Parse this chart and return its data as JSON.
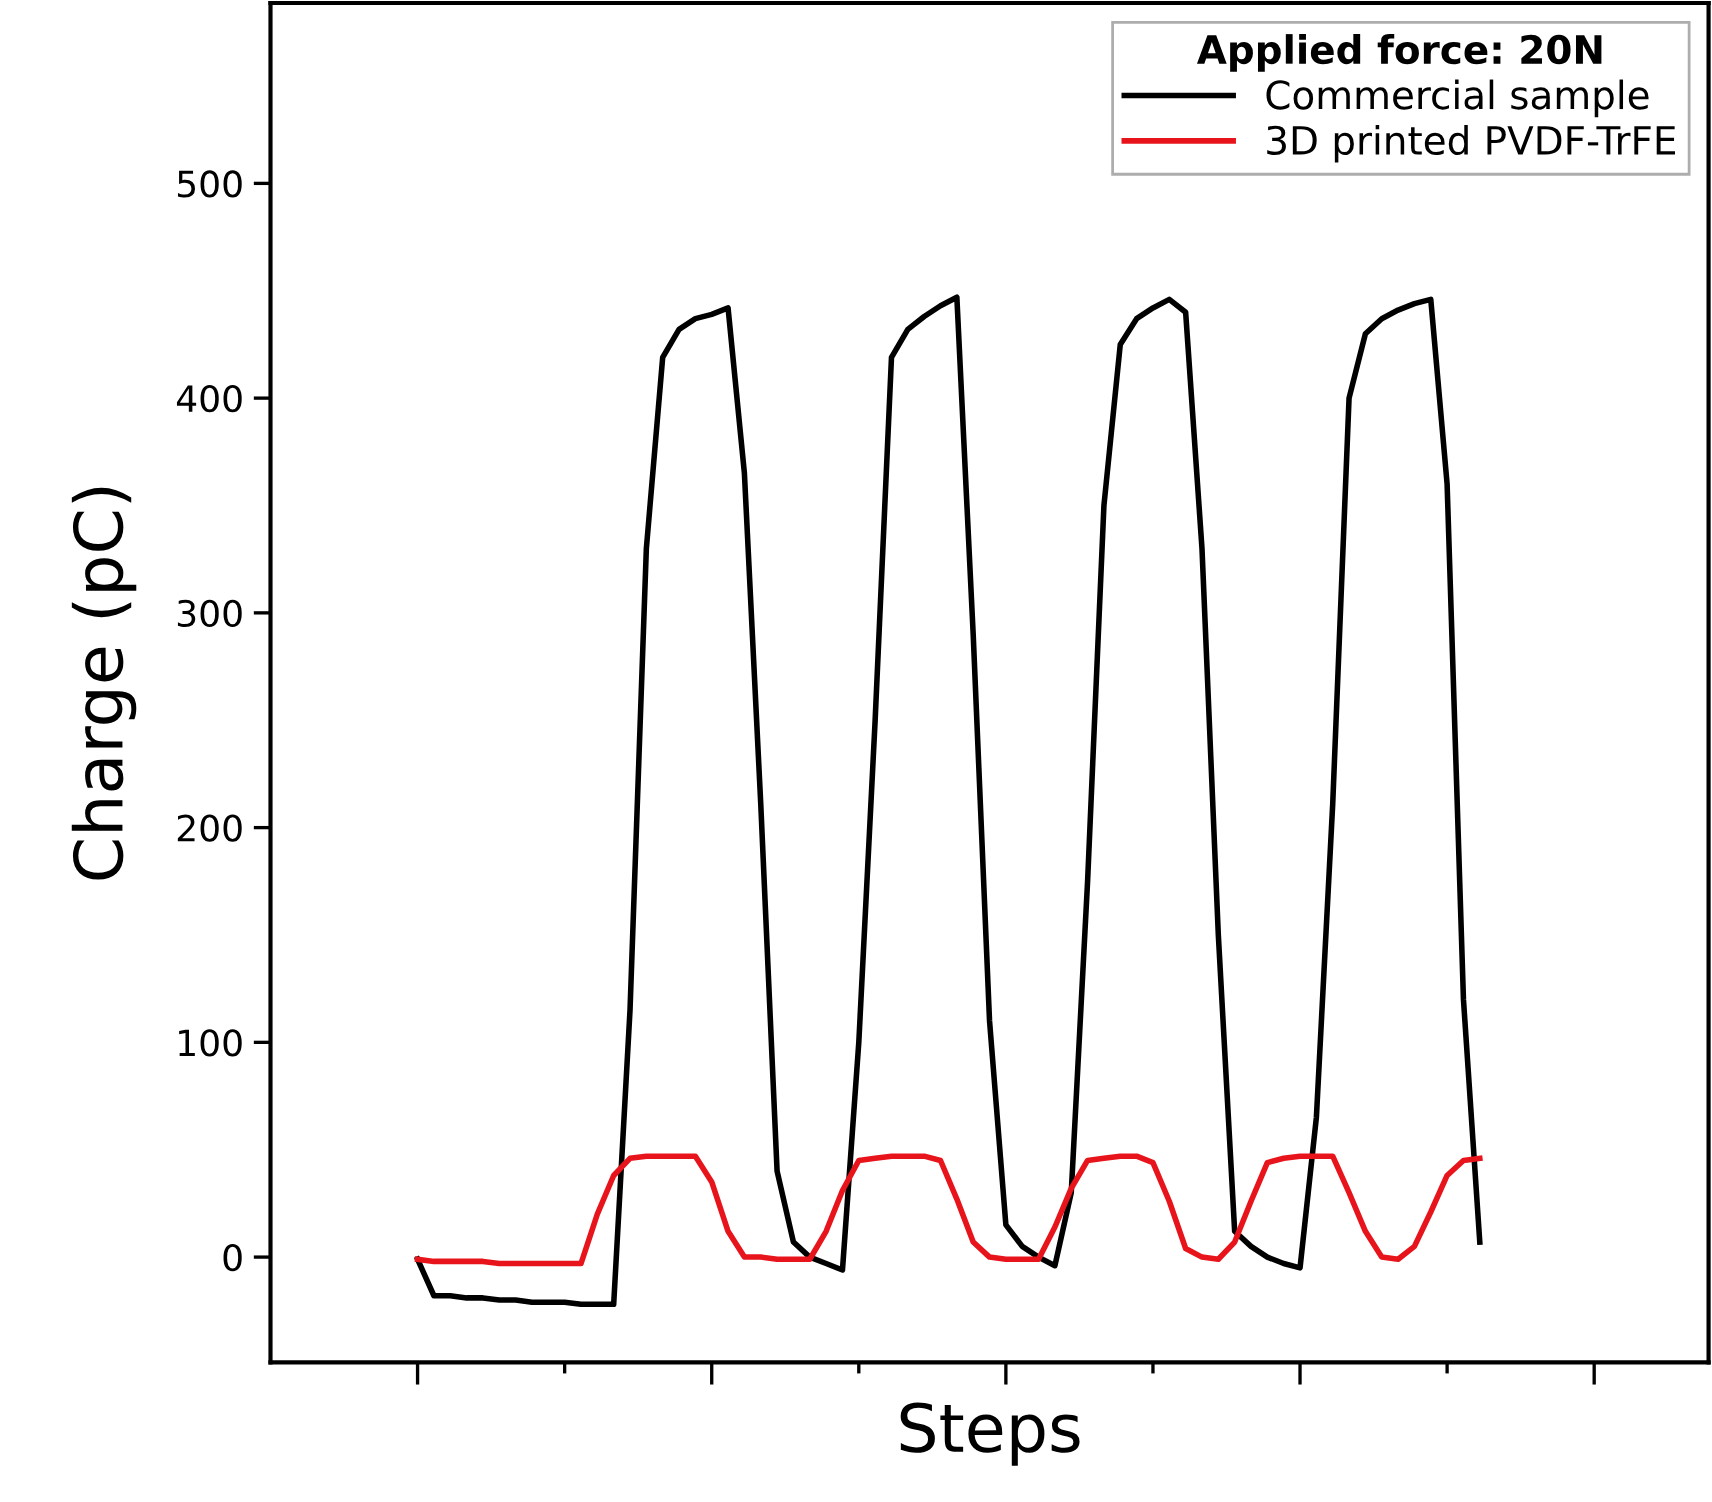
{
  "chart_data": {
    "type": "line",
    "xlabel": "Steps",
    "ylabel": "Charge (pC)",
    "legend_title": "Applied force: 20N",
    "categories": [
      null,
      null,
      null,
      null,
      null,
      null,
      null,
      null,
      null,
      null,
      null,
      null,
      null,
      null,
      null,
      null,
      null,
      null,
      null,
      null,
      null,
      null,
      null,
      null,
      null,
      null,
      null,
      null,
      null,
      null,
      null,
      null,
      null,
      null,
      null,
      null,
      null,
      null,
      null,
      null,
      null,
      null,
      null,
      null,
      null,
      null,
      null,
      null,
      null,
      null,
      null,
      null,
      null,
      null,
      null,
      null,
      null,
      null,
      null,
      null,
      null,
      null,
      null,
      null,
      null,
      null,
      null,
      null,
      null,
      null,
      null,
      null,
      null,
      null,
      null,
      null,
      null,
      null,
      null,
      null,
      null,
      null,
      null,
      null,
      null,
      null,
      null,
      null,
      null
    ],
    "series": [
      {
        "name": "Commercial sample",
        "color": "#000000",
        "values": [
          null,
          null,
          null,
          null,
          null,
          null,
          null,
          null,
          null,
          -1,
          -18,
          -18,
          -19,
          -19,
          -20,
          -20,
          -21,
          -21,
          -21,
          -22,
          -22,
          -22,
          115,
          330,
          419,
          432,
          437,
          439,
          442,
          365,
          211,
          40,
          7,
          0,
          -3,
          -6,
          100,
          250,
          419,
          432,
          438,
          443,
          447,
          290,
          110,
          15,
          5,
          0,
          -4,
          30,
          175,
          350,
          425,
          437,
          442,
          446,
          440,
          330,
          150,
          12,
          5,
          0,
          -3,
          -5,
          65,
          211,
          400,
          430,
          437,
          441,
          444,
          446,
          360,
          120,
          7,
          null,
          null,
          null,
          null,
          null,
          null,
          null,
          null,
          null,
          null,
          null,
          null,
          null,
          null
        ]
      },
      {
        "name": "3D printed PVDF-TrFE",
        "color": "#e8141b",
        "values": [
          null,
          null,
          null,
          null,
          null,
          null,
          null,
          null,
          null,
          -1,
          -2,
          -2,
          -2,
          -2,
          -3,
          -3,
          -3,
          -3,
          -3,
          -3,
          20,
          38,
          46,
          47,
          47,
          47,
          47,
          35,
          12,
          0,
          0,
          -1,
          -1,
          -1,
          12,
          31,
          45,
          46,
          47,
          47,
          47,
          45,
          27,
          7,
          0,
          -1,
          -1,
          -1,
          14,
          32,
          45,
          46,
          47,
          47,
          44,
          26,
          4,
          0,
          -1,
          7,
          26,
          44,
          46,
          47,
          47,
          47,
          30,
          12,
          0,
          -1,
          5,
          21,
          38,
          45,
          46,
          null,
          null,
          null,
          null,
          null,
          null,
          null,
          null,
          null,
          null,
          null,
          null,
          null,
          null
        ]
      }
    ],
    "ylim": [
      -49,
      584
    ],
    "yticks": [
      0,
      100,
      200,
      300,
      400,
      500
    ],
    "tick_labels": "y",
    "legend": "top right",
    "grid": false,
    "line_style": "solid",
    "marker": "none"
  }
}
